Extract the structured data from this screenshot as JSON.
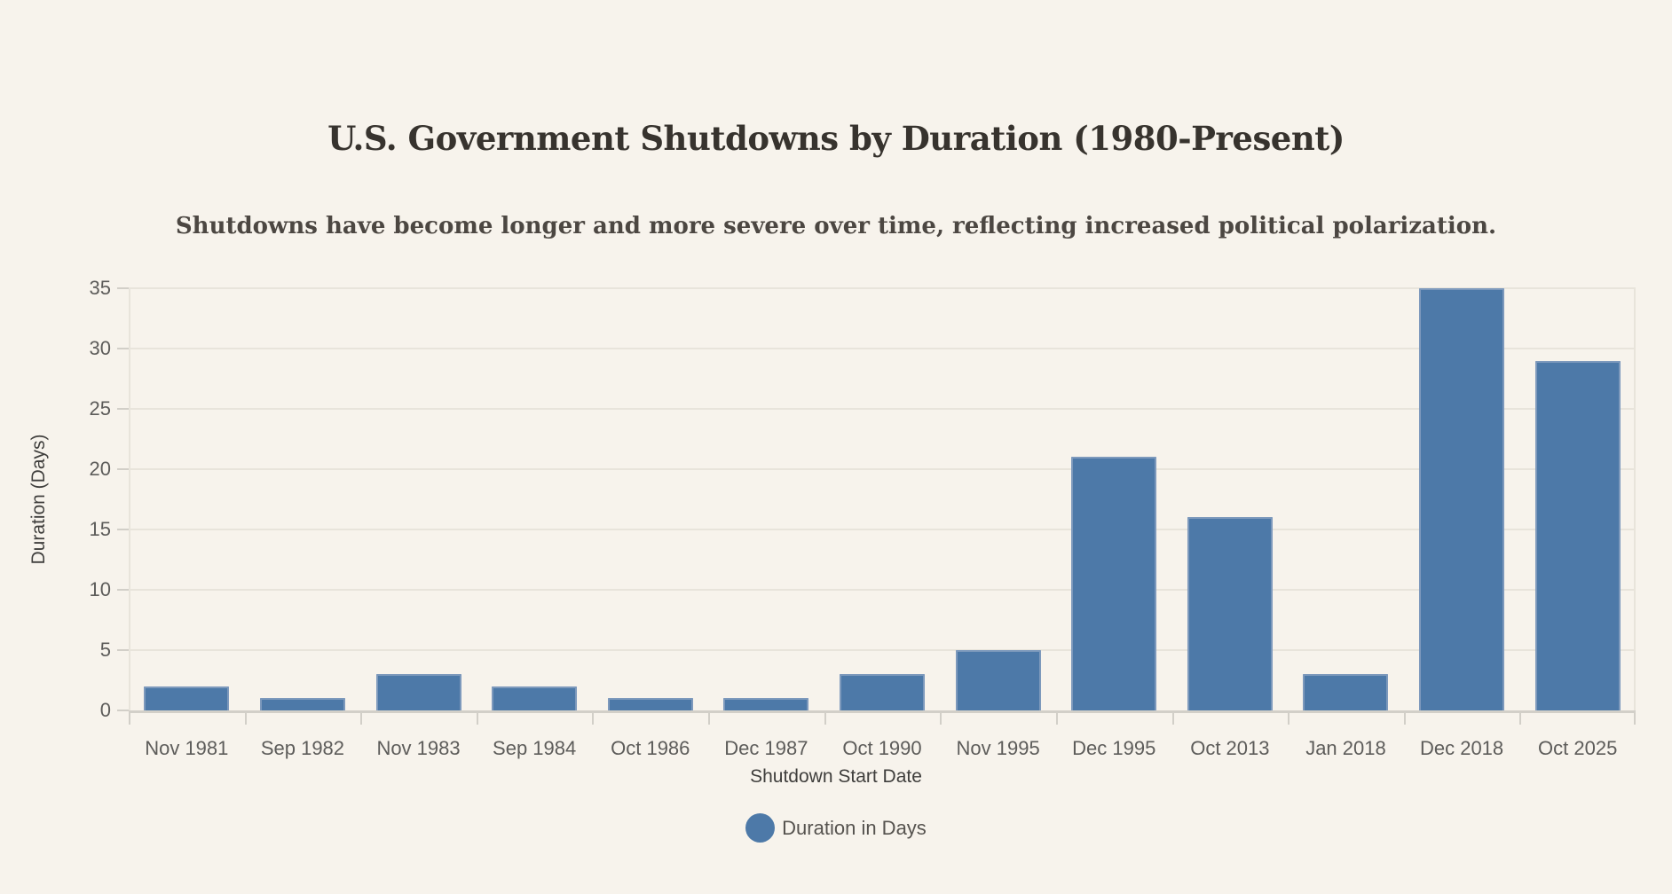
{
  "chart_data": {
    "type": "bar",
    "title": "U.S. Government Shutdowns by Duration (1980-Present)",
    "subtitle": "Shutdowns have become longer and more severe over time, reflecting increased political polarization.",
    "categories": [
      "Nov 1981",
      "Sep 1982",
      "Nov 1983",
      "Sep 1984",
      "Oct 1986",
      "Dec 1987",
      "Oct 1990",
      "Nov 1995",
      "Dec 1995",
      "Oct 2013",
      "Jan 2018",
      "Dec 2018",
      "Oct 2025"
    ],
    "values": [
      2,
      1,
      3,
      2,
      1,
      1,
      3,
      5,
      21,
      16,
      3,
      35,
      29
    ],
    "xlabel": "Shutdown Start Date",
    "ylabel": "Duration (Days)",
    "ylim": [
      0,
      35
    ],
    "yticks": [
      0,
      5,
      10,
      15,
      20,
      25,
      30,
      35
    ],
    "grid": true,
    "legend": {
      "label": "Duration in Days",
      "position": "bottom",
      "marker": "circle"
    },
    "colors": {
      "background": "#f7f3ec",
      "bar_fill": "#4d79a8",
      "bar_border": "#7d99bc",
      "gridline": "#e8e4db",
      "axis_line": "#d2cfc8",
      "title_text": "#37332e",
      "subtitle_text": "#4c4742",
      "tick_text": "#5d5c5a",
      "axis_title_text": "#3f3e3c",
      "legend_text": "#56534f"
    }
  }
}
